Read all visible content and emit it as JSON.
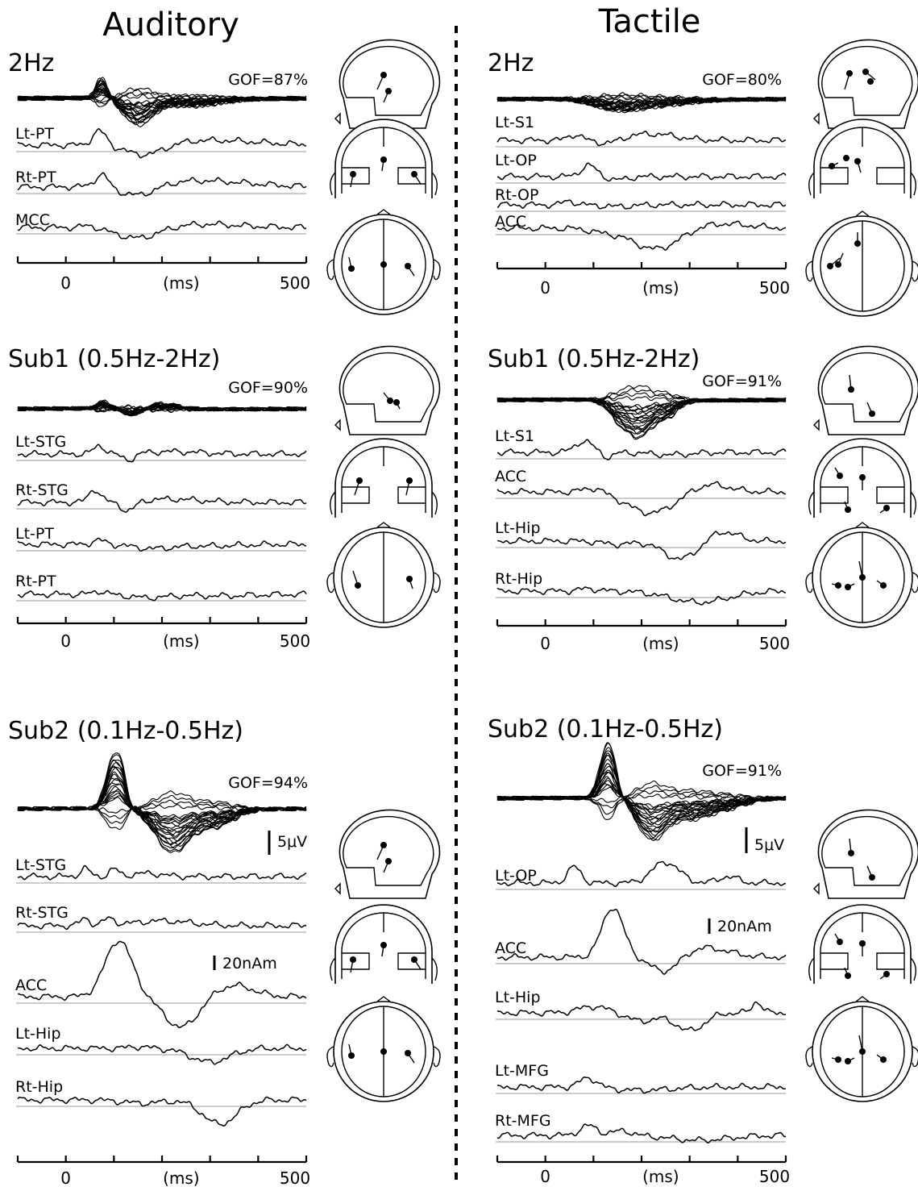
{
  "chart_data": {
    "type": "line",
    "x_unit_label": "(ms)",
    "x_ticks": [
      "0",
      "500"
    ],
    "xlim": [
      -100,
      500
    ],
    "columns": [
      {
        "title": "Auditory",
        "panels": [
          {
            "title": "2Hz",
            "gof": "GOF=87%",
            "butterfly": {
              "pattern": "aud2"
            },
            "sources": [
              {
                "name": "Lt-PT",
                "peaks": [
                  [
                    70,
                    18,
                    14
                  ],
                  [
                    165,
                    -14,
                    40
                  ],
                  [
                    300,
                    6,
                    100
                  ]
                ]
              },
              {
                "name": "Rt-PT",
                "peaks": [
                  [
                    75,
                    16,
                    14
                  ],
                  [
                    150,
                    -14,
                    40
                  ],
                  [
                    270,
                    8,
                    110
                  ]
                ]
              },
              {
                "name": "MCC",
                "peaks": [
                  [
                    50,
                    3,
                    15
                  ],
                  [
                    150,
                    -14,
                    45
                  ],
                  [
                    280,
                    4,
                    80
                  ]
                ]
              }
            ],
            "scale_bars": []
          },
          {
            "title": "Sub1 (0.5Hz-2Hz)",
            "gof": "GOF=90%",
            "butterfly": {
              "pattern": "aud1"
            },
            "sources": [
              {
                "name": "Lt-STG",
                "peaks": [
                  [
                    70,
                    10,
                    12
                  ],
                  [
                    130,
                    -8,
                    14
                  ],
                  [
                    220,
                    3,
                    60
                  ]
                ]
              },
              {
                "name": "Rt-STG",
                "peaks": [
                  [
                    60,
                    16,
                    12
                  ],
                  [
                    130,
                    -12,
                    14
                  ],
                  [
                    220,
                    4,
                    60
                  ]
                ]
              },
              {
                "name": "Lt-PT",
                "peaks": [
                  [
                    70,
                    5,
                    14
                  ],
                  [
                    180,
                    -5,
                    40
                  ],
                  [
                    300,
                    -2,
                    60
                  ]
                ]
              },
              {
                "name": "Rt-PT",
                "peaks": [
                  [
                    70,
                    4,
                    14
                  ],
                  [
                    170,
                    -4,
                    40
                  ],
                  [
                    320,
                    -2,
                    60
                  ]
                ]
              }
            ],
            "scale_bars": []
          },
          {
            "title": "Sub2 (0.1Hz-0.5Hz)",
            "gof": "GOF=94%",
            "butterfly": {
              "pattern": "aud0"
            },
            "sources": [
              {
                "name": "Lt-STG",
                "peaks": [
                  [
                    40,
                    10,
                    10
                  ],
                  [
                    100,
                    9,
                    10
                  ],
                  [
                    170,
                    4,
                    30
                  ]
                ]
              },
              {
                "name": "Rt-STG",
                "peaks": [
                  [
                    40,
                    9,
                    10
                  ],
                  [
                    90,
                    8,
                    12
                  ],
                  [
                    200,
                    6,
                    60
                  ]
                ]
              },
              {
                "name": "ACC",
                "peaks": [
                  [
                    110,
                    70,
                    28
                  ],
                  [
                    240,
                    -38,
                    35
                  ],
                  [
                    350,
                    14,
                    40
                  ]
                ]
              },
              {
                "name": "Lt-Hip",
                "peaks": [
                  [
                    150,
                    2,
                    20
                  ],
                  [
                    300,
                    -17,
                    40
                  ]
                ]
              },
              {
                "name": "Rt-Hip",
                "peaks": [
                  [
                    160,
                    -4,
                    40
                  ],
                  [
                    320,
                    -30,
                    35
                  ]
                ]
              }
            ],
            "scale_bars": [
              {
                "label": "5μV",
                "panel_part": "butterfly"
              },
              {
                "label": "20nAm",
                "panel_part": "sources"
              }
            ]
          }
        ]
      },
      {
        "title": "Tactile",
        "panels": [
          {
            "title": "2Hz",
            "gof": "GOF=80%",
            "butterfly": {
              "pattern": "tac2"
            },
            "sources": [
              {
                "name": "Lt-S1",
                "peaks": [
                  [
                    60,
                    7,
                    14
                  ],
                  [
                    130,
                    -5,
                    20
                  ],
                  [
                    220,
                    8,
                    50
                  ]
                ]
              },
              {
                "name": "Lt-OP",
                "peaks": [
                  [
                    90,
                    14,
                    16
                  ],
                  [
                    150,
                    -4,
                    20
                  ]
                ]
              },
              {
                "name": "Rt-OP",
                "peaks": [
                  [
                    50,
                    5,
                    12
                  ],
                  [
                    150,
                    -2,
                    30
                  ]
                ]
              },
              {
                "name": "ACC",
                "peaks": [
                  [
                    120,
                    -4,
                    30
                  ],
                  [
                    230,
                    -26,
                    50
                  ],
                  [
                    360,
                    6,
                    60
                  ]
                ]
              }
            ],
            "scale_bars": []
          },
          {
            "title": "Sub1 (0.5Hz-2Hz)",
            "gof": "GOF=91%",
            "butterfly": {
              "pattern": "tac1"
            },
            "sources": [
              {
                "name": "Lt-S1",
                "peaks": [
                  [
                    80,
                    14,
                    18
                  ],
                  [
                    130,
                    -6,
                    12
                  ],
                  [
                    260,
                    -3,
                    40
                  ]
                ]
              },
              {
                "name": "ACC",
                "peaks": [
                  [
                    100,
                    6,
                    20
                  ],
                  [
                    220,
                    -26,
                    50
                  ],
                  [
                    340,
                    10,
                    40
                  ]
                ]
              },
              {
                "name": "Lt-Hip",
                "peaks": [
                  [
                    150,
                    -4,
                    30
                  ],
                  [
                    280,
                    -22,
                    35
                  ],
                  [
                    370,
                    12,
                    30
                  ]
                ]
              },
              {
                "name": "Rt-Hip",
                "peaks": [
                  [
                    90,
                    3,
                    20
                  ],
                  [
                    320,
                    -14,
                    60
                  ]
                ]
              }
            ],
            "scale_bars": []
          },
          {
            "title": "Sub2 (0.1Hz-0.5Hz)",
            "gof": "GOF=91%",
            "butterfly": {
              "pattern": "tac0"
            },
            "sources": [
              {
                "name": "Lt-OP",
                "peaks": [
                  [
                    60,
                    20,
                    14
                  ],
                  [
                    250,
                    26,
                    28
                  ],
                  [
                    380,
                    8,
                    20
                  ]
                ]
              },
              {
                "name": "ACC",
                "peaks": [
                  [
                    140,
                    62,
                    22
                  ],
                  [
                    250,
                    -20,
                    30
                  ],
                  [
                    330,
                    12,
                    50
                  ]
                ]
              },
              {
                "name": "Lt-Hip",
                "peaks": [
                  [
                    100,
                    8,
                    30
                  ],
                  [
                    200,
                    -10,
                    30
                  ],
                  [
                    300,
                    -22,
                    30
                  ],
                  [
                    440,
                    14,
                    10
                  ]
                ]
              },
              {
                "name": "Lt-MFG",
                "peaks": [
                  [
                    90,
                    12,
                    18
                  ],
                  [
                    200,
                    -4,
                    60
                  ]
                ]
              },
              {
                "name": "Rt-MFG",
                "peaks": [
                  [
                    90,
                    12,
                    18
                  ],
                  [
                    160,
                    6,
                    20
                  ],
                  [
                    320,
                    -6,
                    60
                  ]
                ]
              }
            ],
            "scale_bars": [
              {
                "label": "5μV",
                "panel_part": "butterfly"
              },
              {
                "label": "20nAm",
                "panel_part": "sources"
              }
            ]
          }
        ]
      }
    ],
    "divider": "dashed-vertical"
  }
}
